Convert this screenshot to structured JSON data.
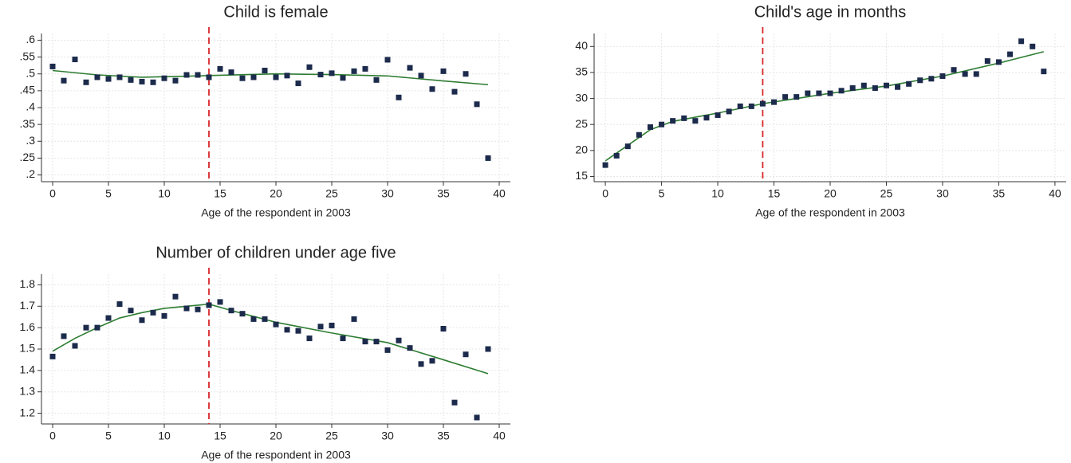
{
  "chart_data": [
    {
      "type": "scatter",
      "title": "Child is female",
      "x_label": "Age of the respondent in 2003",
      "x": [
        0,
        1,
        2,
        3,
        4,
        5,
        6,
        7,
        8,
        9,
        10,
        11,
        12,
        13,
        14,
        15,
        16,
        17,
        18,
        19,
        20,
        21,
        22,
        23,
        24,
        25,
        26,
        27,
        28,
        29,
        30,
        31,
        32,
        33,
        34,
        35,
        36,
        37,
        38,
        39
      ],
      "values": [
        0.522,
        0.48,
        0.543,
        0.475,
        0.49,
        0.485,
        0.49,
        0.482,
        0.477,
        0.475,
        0.487,
        0.48,
        0.497,
        0.497,
        0.49,
        0.515,
        0.505,
        0.487,
        0.49,
        0.51,
        0.49,
        0.495,
        0.472,
        0.52,
        0.498,
        0.502,
        0.488,
        0.508,
        0.515,
        0.482,
        0.542,
        0.43,
        0.518,
        0.495,
        0.455,
        0.508,
        0.447,
        0.5,
        0.41,
        0.25
      ],
      "color": "#1c2b4c",
      "fit": {
        "x": [
          0,
          4,
          8,
          14,
          20,
          25,
          30,
          35,
          39
        ],
        "values": [
          0.51,
          0.497,
          0.49,
          0.495,
          0.5,
          0.498,
          0.494,
          0.479,
          0.468
        ],
        "color": "#2e7d32"
      },
      "vline": {
        "x": 14,
        "color": "#d62728"
      },
      "xlim": [
        -1,
        41
      ],
      "xticks": [
        0,
        5,
        10,
        15,
        20,
        25,
        30,
        35,
        40
      ],
      "ylim": [
        0.18,
        0.62
      ],
      "yticks": [
        {
          "value": 0.2,
          "label": ".2"
        },
        {
          "value": 0.25,
          "label": ".25"
        },
        {
          "value": 0.3,
          "label": ".3"
        },
        {
          "value": 0.35,
          "label": ".35"
        },
        {
          "value": 0.4,
          "label": ".4"
        },
        {
          "value": 0.45,
          "label": ".45"
        },
        {
          "value": 0.5,
          "label": ".5"
        },
        {
          "value": 0.55,
          "label": ".55"
        },
        {
          "value": 0.6,
          "label": ".6"
        }
      ],
      "grid": true
    },
    {
      "type": "scatter",
      "title": "Child's age in months",
      "x_label": "Age of the respondent in 2003",
      "x": [
        0,
        1,
        2,
        3,
        4,
        5,
        6,
        7,
        8,
        9,
        10,
        11,
        12,
        13,
        14,
        15,
        16,
        17,
        18,
        19,
        20,
        21,
        22,
        23,
        24,
        25,
        26,
        27,
        28,
        29,
        30,
        31,
        32,
        33,
        34,
        35,
        36,
        37,
        38,
        39
      ],
      "values": [
        17.2,
        19,
        20.8,
        23,
        24.5,
        25,
        25.7,
        26.2,
        25.7,
        26.3,
        26.8,
        27.5,
        28.5,
        28.5,
        29,
        29.3,
        30.3,
        30.3,
        31,
        31,
        31,
        31.5,
        32,
        32.5,
        32,
        32.5,
        32.2,
        32.8,
        33.5,
        33.8,
        34.3,
        35.5,
        34.7,
        34.7,
        37.2,
        37,
        38.5,
        41,
        40,
        35.2
      ],
      "color": "#1c2b4c",
      "fit": {
        "x": [
          0,
          2,
          4,
          6,
          8,
          10,
          14,
          20,
          25,
          30,
          35,
          39
        ],
        "values": [
          18,
          21,
          24,
          25.6,
          26.4,
          27.2,
          29,
          31,
          32.4,
          34.3,
          36.8,
          39
        ],
        "color": "#2e7d32"
      },
      "vline": {
        "x": 14,
        "color": "#d62728"
      },
      "xlim": [
        -1,
        41
      ],
      "xticks": [
        0,
        5,
        10,
        15,
        20,
        25,
        30,
        35,
        40
      ],
      "ylim": [
        14,
        42.5
      ],
      "yticks": [
        15,
        20,
        25,
        30,
        35,
        40
      ],
      "grid": true
    },
    {
      "type": "scatter",
      "title": "Number of children under age five",
      "x_label": "Age of the respondent in 2003",
      "x": [
        0,
        1,
        2,
        3,
        4,
        5,
        6,
        7,
        8,
        9,
        10,
        11,
        12,
        13,
        14,
        15,
        16,
        17,
        18,
        19,
        20,
        21,
        22,
        23,
        24,
        25,
        26,
        27,
        28,
        29,
        30,
        31,
        32,
        33,
        34,
        35,
        36,
        37,
        38,
        39
      ],
      "values": [
        1.465,
        1.56,
        1.515,
        1.6,
        1.6,
        1.645,
        1.71,
        1.68,
        1.635,
        1.67,
        1.655,
        1.745,
        1.69,
        1.685,
        1.705,
        1.72,
        1.68,
        1.665,
        1.64,
        1.64,
        1.615,
        1.59,
        1.585,
        1.55,
        1.605,
        1.61,
        1.55,
        1.64,
        1.535,
        1.535,
        1.495,
        1.54,
        1.505,
        1.43,
        1.445,
        1.595,
        1.25,
        1.475,
        1.18,
        1.5
      ],
      "color": "#1c2b4c",
      "fit": {
        "x": [
          0,
          2,
          4,
          6,
          8,
          10,
          12,
          14,
          16,
          20,
          25,
          30,
          35,
          39
        ],
        "values": [
          1.49,
          1.55,
          1.6,
          1.645,
          1.67,
          1.69,
          1.7,
          1.71,
          1.68,
          1.625,
          1.575,
          1.53,
          1.45,
          1.385
        ],
        "color": "#2e7d32"
      },
      "vline": {
        "x": 14,
        "color": "#d62728"
      },
      "xlim": [
        -1,
        41
      ],
      "xticks": [
        0,
        5,
        10,
        15,
        20,
        25,
        30,
        35,
        40
      ],
      "ylim": [
        1.15,
        1.85
      ],
      "yticks": [
        1.2,
        1.3,
        1.4,
        1.5,
        1.6,
        1.7,
        1.8
      ],
      "grid": true
    }
  ]
}
